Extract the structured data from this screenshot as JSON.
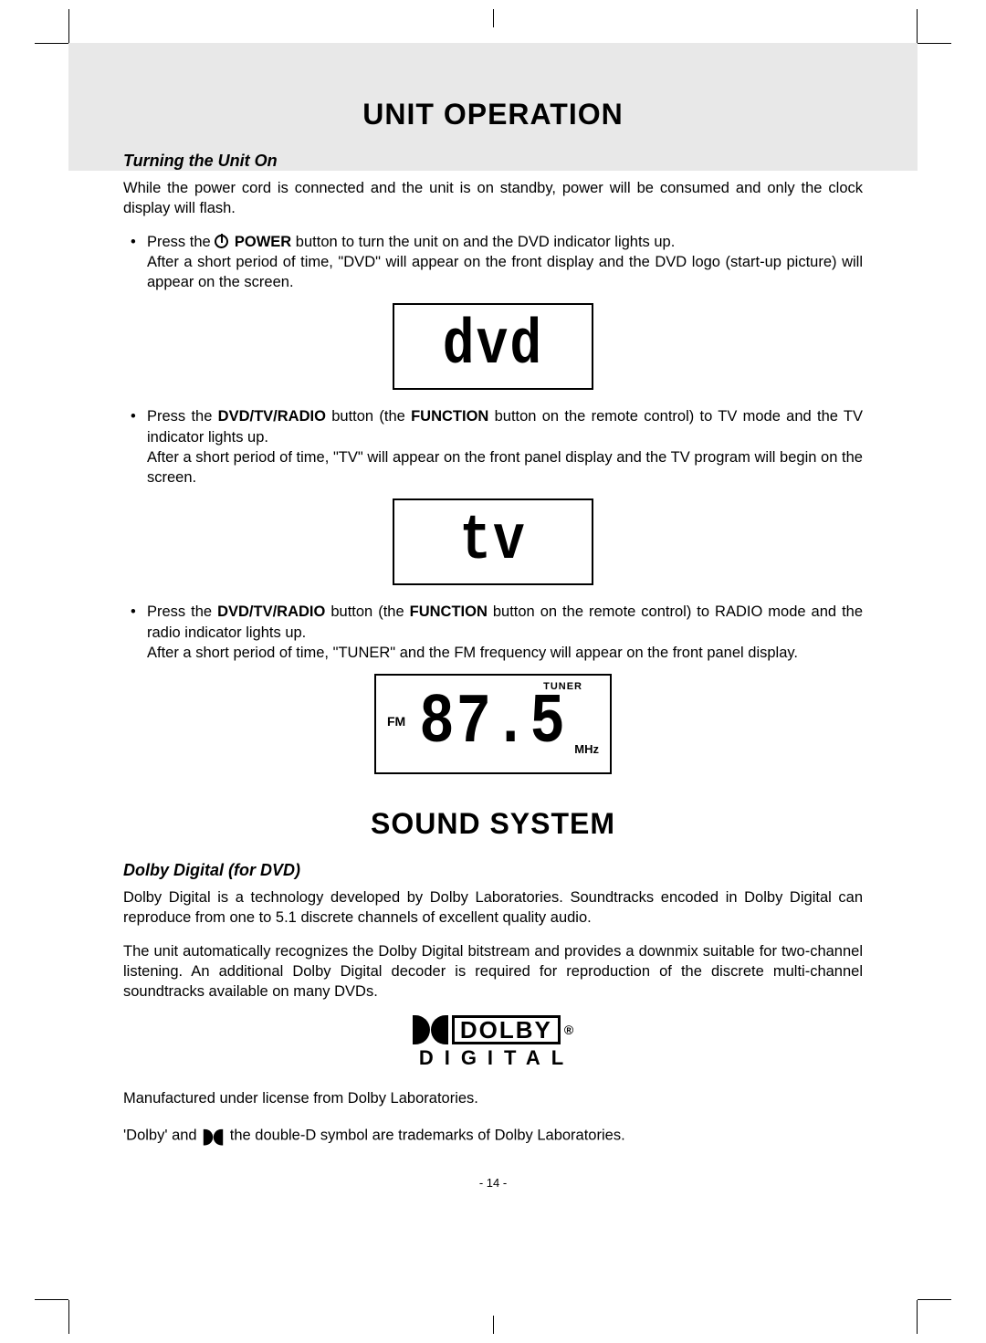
{
  "page": {
    "number": "- 14 -"
  },
  "unit_operation": {
    "title": "UNIT OPERATION",
    "section1": {
      "heading": "Turning the Unit On",
      "intro": "While the power cord is connected and the unit is on standby, power will be consumed and only the clock display will flash.",
      "items": [
        {
          "pre": "Press the ",
          "bold": " POWER",
          "post": " button to turn the unit on and the DVD indicator lights up.",
          "after": "After a short period of time, \"DVD\" will appear on the front display and the DVD logo (start-up picture) will appear on the screen.",
          "display": {
            "type": "text",
            "value": "dvd"
          }
        },
        {
          "pre": "Press the ",
          "bold": "DVD/TV/RADIO",
          "mid": " button (the ",
          "bold2": "FUNCTION",
          "post": " button on the remote control) to TV mode and the TV indicator lights up.",
          "after": "After a short period of time, \"TV\" will appear on the front panel display and the TV program will begin on the screen.",
          "display": {
            "type": "text",
            "value": "tv"
          }
        },
        {
          "pre": "Press the ",
          "bold": "DVD/TV/RADIO",
          "mid": " button (the ",
          "bold2": "FUNCTION",
          "post": " button on the remote control) to RADIO mode and the radio indicator lights up.",
          "after": "After a short period of time, \"TUNER\" and the FM frequency will appear on the front panel display.",
          "display": {
            "type": "tuner",
            "top": "TUNER",
            "left": "FM",
            "value": "87.5",
            "unit": "MHz"
          }
        }
      ]
    }
  },
  "sound_system": {
    "title": "SOUND SYSTEM",
    "heading": "Dolby Digital (for DVD)",
    "para1": "Dolby Digital is a technology developed by Dolby Laboratories. Soundtracks encoded in Dolby Digital can reproduce from one to 5.1 discrete channels of excellent quality audio.",
    "para2": "The unit automatically recognizes the Dolby Digital bitstream and provides a downmix suitable for two-channel listening. An additional Dolby Digital decoder is required for reproduction of the discrete multi-channel soundtracks available on many DVDs.",
    "logo": {
      "word": "DOLBY",
      "sub": "DIGITAL",
      "reg": "®"
    },
    "license": "Manufactured under license from Dolby Laboratories.",
    "trademark_pre": "'Dolby' and ",
    "trademark_post": " the double-D symbol are trademarks of Dolby Laboratories."
  },
  "style": {
    "background": "#ffffff",
    "header_band": "#e8e8e8",
    "text": "#000000",
    "border": "#000000",
    "title_fontsize": 32,
    "body_fontsize": 16.5,
    "sub_fontsize": 18
  }
}
